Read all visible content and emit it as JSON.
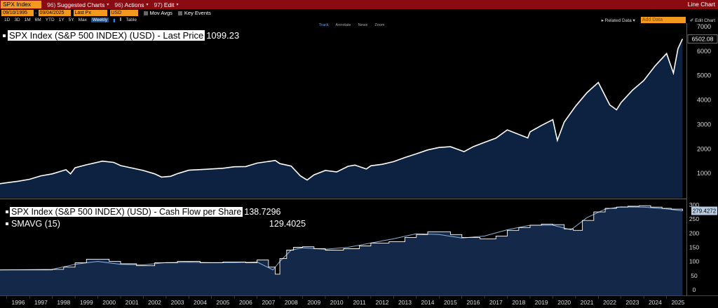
{
  "toolbar": {
    "ticker": "SPX Index",
    "suggested_num": "96)",
    "suggested_label": "Suggested Charts",
    "actions_num": "96)",
    "actions_label": "Actions",
    "edit_num": "97)",
    "edit_label": "Edit",
    "right_label": "Line Chart"
  },
  "controls": {
    "start_date": "09/10/1995",
    "end_date": "09/04/2025",
    "field": "Last Px",
    "currency": "USD",
    "mov_avgs": "Mov Avgs",
    "key_events": "Key Events",
    "periods": [
      "1D",
      "3D",
      "1M",
      "6M",
      "YTD",
      "1Y",
      "5Y",
      "Max"
    ],
    "frequency": "Weekly",
    "table": "Table",
    "related_data": "Related Data",
    "edit_chart": "Edit Chart",
    "add_data_placeholder": "Add Data"
  },
  "chart_tools": [
    "Track",
    "Annotate",
    "News",
    "Zoom"
  ],
  "colors": {
    "price_fill": "#0c2240",
    "cf_fill": "#14294a",
    "line": "#ffffff",
    "sma_line": "#8fb3d9",
    "topbar": "#8b0b13",
    "accent": "#f39a1e"
  },
  "chart_data": [
    {
      "type": "area",
      "legend": "SPX Index (S&P 500 INDEX) (USD) - Last Price",
      "legend_value": "1099.23",
      "last_value_tag": "6502.08",
      "ylim": [
        0,
        7000
      ],
      "yticks": [
        1000,
        2000,
        3000,
        4000,
        5000,
        6000,
        7000
      ],
      "x": [
        1995.7,
        1996.0,
        1996.5,
        1997.0,
        1997.5,
        1998.0,
        1998.6,
        1998.8,
        1999.0,
        1999.5,
        2000.2,
        2000.7,
        2001.0,
        2001.7,
        2002.0,
        2002.5,
        2002.8,
        2003.2,
        2003.5,
        2004.0,
        2004.8,
        2005.5,
        2006.0,
        2006.5,
        2007.0,
        2007.8,
        2008.0,
        2008.5,
        2008.9,
        2009.2,
        2009.5,
        2010.0,
        2010.5,
        2011.0,
        2011.3,
        2011.8,
        2012.0,
        2012.5,
        2013.0,
        2013.5,
        2014.0,
        2014.5,
        2015.0,
        2015.5,
        2016.1,
        2016.5,
        2017.0,
        2017.5,
        2018.0,
        2018.9,
        2019.0,
        2019.5,
        2020.0,
        2020.2,
        2020.5,
        2021.0,
        2021.5,
        2022.0,
        2022.5,
        2022.8,
        2023.0,
        2023.5,
        2024.0,
        2024.5,
        2025.0,
        2025.3,
        2025.5,
        2025.7
      ],
      "y": [
        580,
        620,
        680,
        760,
        900,
        980,
        1150,
        980,
        1230,
        1350,
        1500,
        1450,
        1320,
        1180,
        1120,
        980,
        850,
        880,
        990,
        1130,
        1170,
        1210,
        1270,
        1280,
        1420,
        1530,
        1400,
        1300,
        900,
        730,
        940,
        1120,
        1060,
        1290,
        1340,
        1180,
        1310,
        1370,
        1480,
        1650,
        1800,
        1960,
        2060,
        2090,
        1890,
        2090,
        2270,
        2440,
        2780,
        2450,
        2700,
        2960,
        3200,
        2350,
        3100,
        3750,
        4300,
        4720,
        3800,
        3600,
        3900,
        4400,
        4800,
        5400,
        5900,
        5100,
        6100,
        6502
      ]
    },
    {
      "type": "line",
      "series": [
        {
          "name": "SPX Index (S&P 500 INDEX) (USD) - Cash Flow per Share",
          "legend_value": "138.7296",
          "x": [
            1995.7,
            1998.0,
            1998.5,
            1999.0,
            1999.5,
            2000.5,
            2001.0,
            2001.7,
            2002.5,
            2003.5,
            2004.5,
            2005.5,
            2006.5,
            2007.0,
            2007.5,
            2007.8,
            2008.0,
            2008.3,
            2008.6,
            2009.0,
            2009.5,
            2010.0,
            2010.8,
            2011.5,
            2012.0,
            2012.8,
            2013.5,
            2014.0,
            2014.5,
            2015.5,
            2016.0,
            2016.8,
            2017.5,
            2018.0,
            2018.5,
            2019.0,
            2019.5,
            2020.0,
            2020.5,
            2020.9,
            2021.3,
            2021.8,
            2022.3,
            2022.8,
            2023.3,
            2023.8,
            2024.3,
            2024.8,
            2025.2,
            2025.7
          ],
          "y": [
            70,
            72,
            80,
            95,
            108,
            100,
            92,
            85,
            95,
            100,
            95,
            98,
            95,
            105,
            80,
            55,
            110,
            140,
            150,
            152,
            145,
            140,
            145,
            155,
            165,
            170,
            185,
            195,
            205,
            195,
            185,
            180,
            190,
            210,
            220,
            228,
            232,
            230,
            215,
            210,
            245,
            275,
            288,
            292,
            295,
            297,
            292,
            288,
            285,
            279
          ]
        },
        {
          "name": "SMAVG (15)",
          "legend_value": "129.4025",
          "x": [
            1995.7,
            1998.0,
            1999.0,
            2000.0,
            2001.0,
            2002.0,
            2003.0,
            2004.0,
            2005.0,
            2006.0,
            2007.0,
            2007.7,
            2008.0,
            2008.5,
            2009.0,
            2010.0,
            2011.0,
            2012.0,
            2013.0,
            2014.0,
            2015.0,
            2016.0,
            2017.0,
            2018.0,
            2019.0,
            2020.0,
            2020.8,
            2021.5,
            2022.3,
            2023.0,
            2024.0,
            2025.0,
            2025.7
          ],
          "y": [
            70,
            72,
            90,
            100,
            90,
            88,
            96,
            97,
            96,
            96,
            98,
            70,
            100,
            140,
            148,
            143,
            150,
            165,
            180,
            198,
            195,
            183,
            190,
            212,
            228,
            228,
            212,
            255,
            285,
            293,
            292,
            286,
            279
          ]
        }
      ],
      "last_value_tag": "279.4272",
      "ylim": [
        -20,
        305
      ],
      "yticks": [
        0,
        50,
        100,
        150,
        200,
        250,
        300
      ],
      "xlabels": [
        "1996",
        "1997",
        "1998",
        "1999",
        "2000",
        "2001",
        "2002",
        "2003",
        "2004",
        "2005",
        "2006",
        "2007",
        "2008",
        "2009",
        "2010",
        "2011",
        "2012",
        "2013",
        "2014",
        "2015",
        "2016",
        "2017",
        "2018",
        "2019",
        "2020",
        "2021",
        "2022",
        "2023",
        "2024",
        "2025"
      ]
    }
  ]
}
